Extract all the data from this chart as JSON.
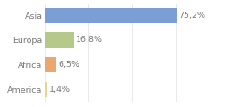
{
  "categories": [
    "America",
    "Africa",
    "Europa",
    "Asia"
  ],
  "values": [
    1.4,
    6.5,
    16.8,
    75.2
  ],
  "labels": [
    "1,4%",
    "6,5%",
    "16,8%",
    "75,2%"
  ],
  "bar_colors": [
    "#e8d48c",
    "#e8a870",
    "#b5c98a",
    "#7b9fd4"
  ],
  "background_color": "#ffffff",
  "xlim": [
    0,
    100
  ],
  "bar_height": 0.62,
  "label_fontsize": 6.8,
  "tick_fontsize": 6.8,
  "text_color": "#777777",
  "grid_color": "#e0e0e0"
}
